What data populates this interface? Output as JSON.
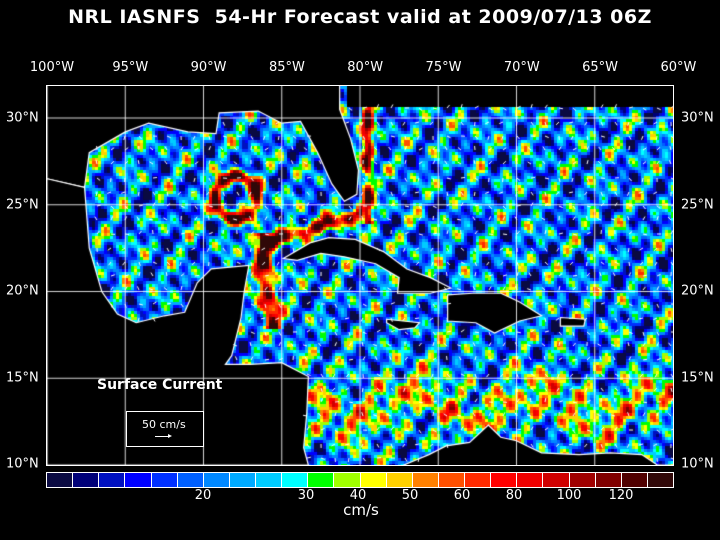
{
  "title": "NRL IASNFS  54-Hr Forecast valid at 2009/07/13 06Z",
  "lon_labels": [
    "100°W",
    "95°W",
    "90°W",
    "85°W",
    "80°W",
    "75°W",
    "70°W",
    "65°W",
    "60°W"
  ],
  "lat_labels": [
    "30°N",
    "25°N",
    "20°N",
    "15°N",
    "10°N"
  ],
  "legend": {
    "title": "Surface Current",
    "reference_vector": "50 cm/s"
  },
  "colorbar": {
    "unit": "cm/s",
    "ticks": [
      "20",
      "30",
      "40",
      "50",
      "60",
      "80",
      "100",
      "120"
    ],
    "colors": [
      "#0a0a42",
      "#000078",
      "#0010c0",
      "#0000ff",
      "#0030ff",
      "#0060ff",
      "#0088ff",
      "#00aaff",
      "#00ccff",
      "#00ffff",
      "#00ff00",
      "#a0ff00",
      "#ffff00",
      "#ffd000",
      "#ff8000",
      "#ff5000",
      "#ff2a00",
      "#ff0000",
      "#f00000",
      "#d00000",
      "#a00000",
      "#800000",
      "#500000",
      "#300808"
    ]
  },
  "map_extent": {
    "lon": [
      -100,
      -60
    ],
    "lat": [
      10,
      31.8
    ]
  }
}
